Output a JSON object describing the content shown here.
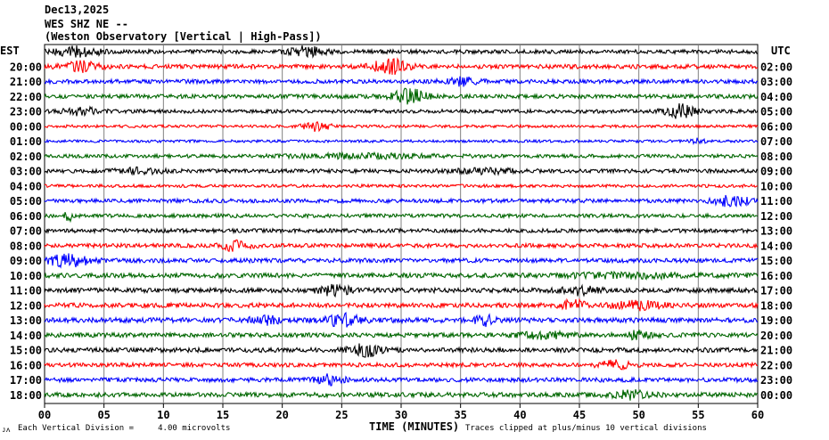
{
  "header": {
    "date": "Dec13,2025",
    "station": "WES SHZ NE --",
    "description": "(Weston Observatory [Vertical | High-Pass])"
  },
  "left_timezone": "EST",
  "right_timezone": "UTC",
  "footer": {
    "vertical_division": "Each Vertical Division =     4.00 microvolts",
    "axis_title": "TIME (MINUTES)",
    "clip_note": "Traces clipped at plus/minus 10 vertical divisions",
    "corner_mark": "ᴊᴧ"
  },
  "colors": {
    "cycle": [
      "#000000",
      "#ff0000",
      "#0000ff",
      "#006600"
    ],
    "grid": "#808080"
  },
  "chart_data": {
    "type": "line",
    "xlabel": "TIME (MINUTES)",
    "xlim": [
      0,
      60
    ],
    "x_ticks": [
      "00",
      "05",
      "10",
      "15",
      "20",
      "25",
      "30",
      "35",
      "40",
      "45",
      "50",
      "55",
      "60"
    ],
    "rows": [
      {
        "left": "",
        "right": "",
        "amp": 2.2,
        "events": [
          [
            3,
            2,
            5
          ],
          [
            22,
            1.5,
            6
          ]
        ]
      },
      {
        "left": "20:00",
        "right": "02:00",
        "amp": 2.4,
        "events": [
          [
            3,
            1.5,
            5
          ],
          [
            29,
            1.5,
            8
          ]
        ]
      },
      {
        "left": "21:00",
        "right": "03:00",
        "amp": 2.3,
        "events": [
          [
            35,
            1.5,
            4
          ]
        ]
      },
      {
        "left": "22:00",
        "right": "04:00",
        "amp": 2.3,
        "events": [
          [
            30.5,
            1.5,
            9
          ]
        ]
      },
      {
        "left": "23:00",
        "right": "05:00",
        "amp": 2.1,
        "events": [
          [
            3,
            1.5,
            4
          ],
          [
            53.5,
            1.3,
            7
          ]
        ]
      },
      {
        "left": "00:00",
        "right": "06:00",
        "amp": 1.6,
        "events": [
          [
            23,
            1.2,
            5
          ]
        ]
      },
      {
        "left": "01:00",
        "right": "07:00",
        "amp": 1.5,
        "events": [
          [
            55,
            0.6,
            3
          ]
        ]
      },
      {
        "left": "02:00",
        "right": "08:00",
        "amp": 2.0,
        "events": [
          [
            27,
            6,
            2
          ]
        ]
      },
      {
        "left": "03:00",
        "right": "09:00",
        "amp": 2.2,
        "events": [
          [
            8,
            2,
            2.5
          ],
          [
            37,
            3,
            2
          ]
        ]
      },
      {
        "left": "04:00",
        "right": "10:00",
        "amp": 1.7,
        "events": []
      },
      {
        "left": "05:00",
        "right": "11:00",
        "amp": 2.2,
        "events": [
          [
            58,
            1.5,
            6
          ]
        ]
      },
      {
        "left": "06:00",
        "right": "12:00",
        "amp": 2.1,
        "events": [
          [
            2,
            0.3,
            6
          ]
        ]
      },
      {
        "left": "07:00",
        "right": "13:00",
        "amp": 2.2,
        "events": []
      },
      {
        "left": "08:00",
        "right": "14:00",
        "amp": 2.3,
        "events": [
          [
            16,
            1.2,
            5
          ]
        ]
      },
      {
        "left": "09:00",
        "right": "15:00",
        "amp": 2.4,
        "events": [
          [
            2,
            1.8,
            6
          ]
        ]
      },
      {
        "left": "10:00",
        "right": "16:00",
        "amp": 2.6,
        "events": [
          [
            49,
            6,
            2
          ]
        ]
      },
      {
        "left": "11:00",
        "right": "17:00",
        "amp": 2.6,
        "events": [
          [
            24.5,
            1.5,
            5
          ],
          [
            45,
            1.5,
            4
          ]
        ]
      },
      {
        "left": "12:00",
        "right": "18:00",
        "amp": 2.6,
        "events": [
          [
            44.5,
            1,
            5
          ],
          [
            50,
            2,
            4
          ]
        ]
      },
      {
        "left": "13:00",
        "right": "19:00",
        "amp": 2.8,
        "events": [
          [
            18.5,
            1.2,
            4
          ],
          [
            25,
            1.5,
            6
          ],
          [
            37,
            0.8,
            5
          ]
        ]
      },
      {
        "left": "14:00",
        "right": "20:00",
        "amp": 2.5,
        "events": [
          [
            42,
            2,
            3
          ],
          [
            50,
            1,
            4
          ]
        ]
      },
      {
        "left": "15:00",
        "right": "21:00",
        "amp": 2.6,
        "events": [
          [
            27,
            1.3,
            6
          ]
        ]
      },
      {
        "left": "16:00",
        "right": "22:00",
        "amp": 2.3,
        "events": [
          [
            48,
            1.3,
            4
          ]
        ]
      },
      {
        "left": "17:00",
        "right": "23:00",
        "amp": 2.4,
        "events": [
          [
            24,
            1.2,
            5
          ]
        ]
      },
      {
        "left": "18:00",
        "right": "00:00",
        "amp": 2.6,
        "events": [
          [
            49.5,
            1.6,
            4
          ]
        ]
      }
    ]
  }
}
